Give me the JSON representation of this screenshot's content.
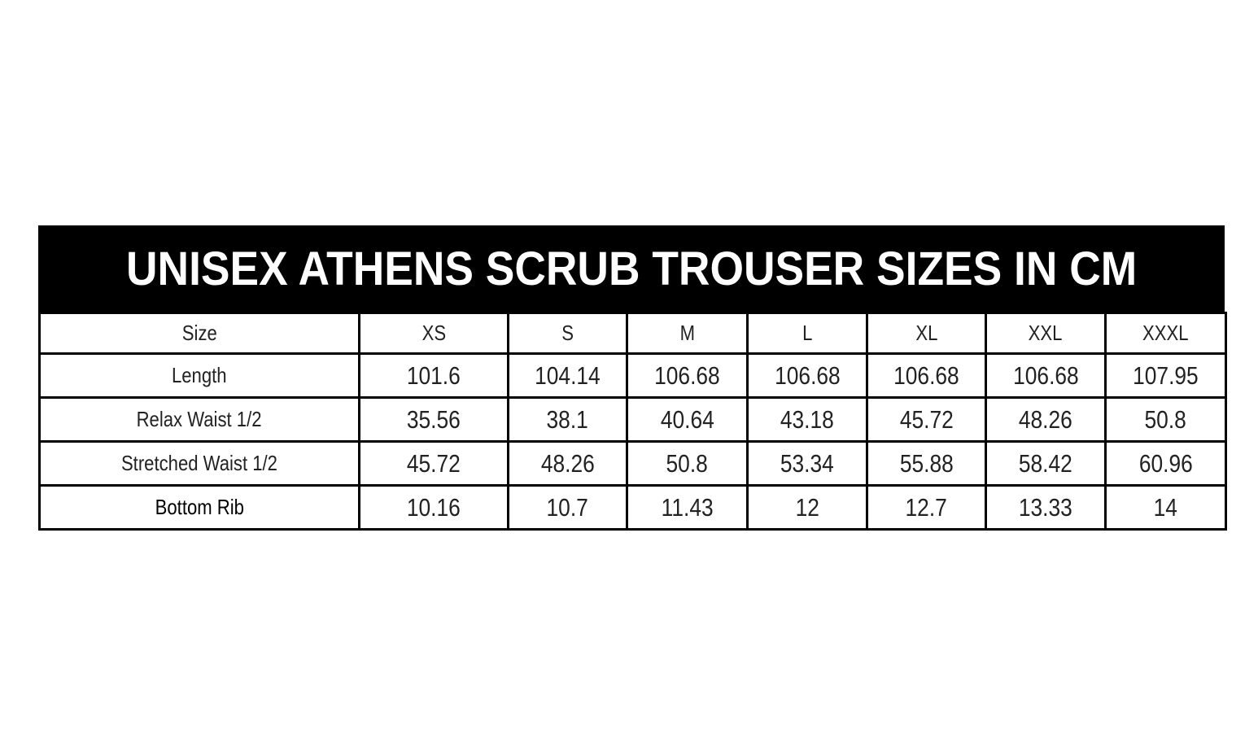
{
  "title": "UNISEX ATHENS SCRUB TROUSER SIZES IN CM",
  "table": {
    "header_label": "Size",
    "sizes": [
      "XS",
      "S",
      "M",
      "L",
      "XL",
      "XXL",
      "XXXL"
    ],
    "rows": [
      {
        "label": "Length",
        "values": [
          "101.6",
          "104.14",
          "106.68",
          "106.68",
          "106.68",
          "106.68",
          "107.95"
        ]
      },
      {
        "label": "Relax Waist 1/2",
        "values": [
          "35.56",
          "38.1",
          "40.64",
          "43.18",
          "45.72",
          "48.26",
          "50.8"
        ]
      },
      {
        "label": "Stretched Waist 1/2",
        "values": [
          "45.72",
          "48.26",
          "50.8",
          "53.34",
          "55.88",
          "58.42",
          "60.96"
        ]
      },
      {
        "label": "Bottom Rib",
        "values": [
          "10.16",
          "10.7",
          "11.43",
          "12",
          "12.7",
          "13.33",
          "14"
        ]
      }
    ]
  }
}
